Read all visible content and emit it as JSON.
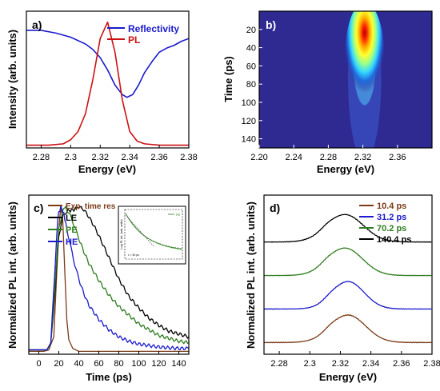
{
  "chart_data": [
    {
      "panel_label": "a)",
      "type": "line",
      "xlabel": "Energy (eV)",
      "ylabel": "Intensity (arb. units)",
      "xlim": [
        2.27,
        2.38
      ],
      "xticks": [
        "2.28",
        "2.3",
        "2.32",
        "2.34",
        "2.36",
        "2.38"
      ],
      "xtick_values": [
        2.28,
        2.3,
        2.32,
        2.34,
        2.36,
        2.38
      ],
      "yticks_shown": false,
      "legend": "top-right",
      "series": [
        {
          "name": "Reflectivity",
          "color": "#1a1acc",
          "x": [
            2.27,
            2.28,
            2.29,
            2.3,
            2.31,
            2.315,
            2.32,
            2.325,
            2.33,
            2.335,
            2.338,
            2.342,
            2.346,
            2.35,
            2.355,
            2.36,
            2.365,
            2.37,
            2.375,
            2.38
          ],
          "y": [
            0.86,
            0.86,
            0.84,
            0.81,
            0.76,
            0.72,
            0.66,
            0.57,
            0.46,
            0.39,
            0.37,
            0.39,
            0.46,
            0.55,
            0.63,
            0.7,
            0.73,
            0.75,
            0.78,
            0.8
          ]
        },
        {
          "name": "PL",
          "color": "#cc1111",
          "x": [
            2.27,
            2.285,
            2.295,
            2.3,
            2.305,
            2.31,
            2.315,
            2.32,
            2.325,
            2.33,
            2.335,
            2.34,
            2.345,
            2.35,
            2.36,
            2.38
          ],
          "y": [
            0.02,
            0.02,
            0.03,
            0.06,
            0.12,
            0.25,
            0.5,
            0.8,
            0.92,
            0.7,
            0.35,
            0.12,
            0.05,
            0.03,
            0.02,
            0.02
          ]
        }
      ]
    },
    {
      "panel_label": "b)",
      "type": "heatmap",
      "xlabel": "Energy (eV)",
      "ylabel": "Time (ps)",
      "xlim": [
        2.2,
        2.4
      ],
      "ylim": [
        0,
        150
      ],
      "y_axis": "downward",
      "xticks": [
        "2.20",
        "2.24",
        "2.28",
        "2.32",
        "2.36"
      ],
      "xtick_values": [
        2.2,
        2.24,
        2.28,
        2.32,
        2.36
      ],
      "yticks": [
        "20",
        "40",
        "60",
        "80",
        "100",
        "120",
        "140"
      ],
      "ytick_values": [
        20,
        40,
        60,
        80,
        100,
        120,
        140
      ],
      "background_color": "#2e2a92",
      "peak": {
        "energy": 2.322,
        "time": 28,
        "energy_width": 0.012,
        "rise_ps": 20,
        "decay_ps": 18
      }
    },
    {
      "panel_label": "c)",
      "type": "line",
      "xlabel": "Time (ps)",
      "ylabel": "Normalized PL int. (arb. units)",
      "xlim": [
        -10,
        150
      ],
      "xticks": [
        "0",
        "20",
        "40",
        "60",
        "80",
        "100",
        "120",
        "140"
      ],
      "xtick_values": [
        0,
        20,
        40,
        60,
        80,
        100,
        120,
        140
      ],
      "yticks_shown": false,
      "legend": "top-left",
      "series": [
        {
          "name": "Exp. time res",
          "color": "#7a3a16",
          "x": [
            -10,
            5,
            10,
            15,
            18,
            20,
            22,
            24,
            26,
            28,
            30,
            34,
            40,
            150
          ],
          "y": [
            0.0,
            0.0,
            0.01,
            0.1,
            0.55,
            0.85,
            1.0,
            0.9,
            0.55,
            0.22,
            0.08,
            0.02,
            0.0,
            0.0
          ]
        },
        {
          "name": "LE",
          "color": "#000000",
          "x": [
            -10,
            8,
            12,
            16,
            20,
            24,
            28,
            35,
            40,
            45,
            50,
            55,
            60,
            70,
            80,
            90,
            100,
            110,
            120,
            130,
            140,
            150
          ],
          "y": [
            0.01,
            0.01,
            0.05,
            0.4,
            0.8,
            0.93,
            0.97,
            0.98,
            1.0,
            0.98,
            0.93,
            0.87,
            0.8,
            0.65,
            0.5,
            0.38,
            0.3,
            0.23,
            0.18,
            0.14,
            0.12,
            0.1
          ]
        },
        {
          "name": "PE",
          "color": "#2e7d1e",
          "x": [
            -10,
            8,
            12,
            16,
            20,
            24,
            26,
            28,
            32,
            36,
            40,
            45,
            50,
            60,
            70,
            80,
            90,
            100,
            110,
            120,
            130,
            140,
            150
          ],
          "y": [
            0.01,
            0.01,
            0.05,
            0.45,
            0.85,
            0.97,
            1.0,
            0.98,
            0.93,
            0.86,
            0.78,
            0.69,
            0.61,
            0.49,
            0.39,
            0.31,
            0.25,
            0.19,
            0.15,
            0.11,
            0.09,
            0.07,
            0.06
          ]
        },
        {
          "name": "HE",
          "color": "#1a1acc",
          "x": [
            -10,
            8,
            12,
            16,
            19,
            22,
            25,
            28,
            32,
            36,
            40,
            45,
            50,
            60,
            70,
            80,
            90,
            100,
            110,
            120,
            130,
            140,
            150
          ],
          "y": [
            0.01,
            0.01,
            0.06,
            0.55,
            0.93,
            1.0,
            0.95,
            0.85,
            0.72,
            0.6,
            0.5,
            0.4,
            0.32,
            0.22,
            0.15,
            0.1,
            0.07,
            0.05,
            0.04,
            0.03,
            0.025,
            0.02,
            0.02
          ]
        }
      ],
      "inset": {
        "type": "line",
        "y_scale": "log",
        "legend": "PE",
        "ylabel": "Log PL int. (arb. units)",
        "annotation": "τ = 30 ps",
        "series_color": "#2e7d1e"
      }
    },
    {
      "panel_label": "d)",
      "type": "line",
      "xlabel": "Energy (eV)",
      "ylabel": "Normalized PL int. (arb. units)",
      "xlim": [
        2.27,
        2.38
      ],
      "xticks": [
        "2.28",
        "2.3",
        "2.32",
        "2.34",
        "2.36",
        "2.38"
      ],
      "xtick_values": [
        2.28,
        2.3,
        2.32,
        2.34,
        2.36,
        2.38
      ],
      "yticks_shown": false,
      "legend": "top-right",
      "stacked_offset": 1.0,
      "series": [
        {
          "name": "10.4 ps",
          "color": "#7a3a16",
          "offset": 0,
          "peak": 2.325,
          "width": 0.0115
        },
        {
          "name": "31.2 ps",
          "color": "#1a1acc",
          "offset": 1,
          "peak": 2.325,
          "width": 0.0105
        },
        {
          "name": "70.2 ps",
          "color": "#2e7d1e",
          "offset": 2,
          "peak": 2.323,
          "width": 0.0115
        },
        {
          "name": "140.4 ps",
          "color": "#000000",
          "offset": 3,
          "peak": 2.323,
          "width": 0.012
        }
      ]
    }
  ]
}
